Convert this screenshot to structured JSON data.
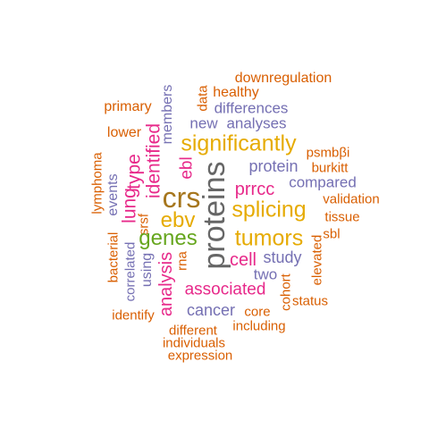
{
  "colors": {
    "orange": "#D95F02",
    "purple": "#7570B3",
    "pink": "#E7298A",
    "gold": "#E6AB02",
    "green": "#66A61E",
    "brown": "#A6761D",
    "gray": "#666666"
  },
  "words": {
    "downregulation": "downregulation",
    "data": "data",
    "healthy": "healthy",
    "members": "members",
    "primary": "primary",
    "differences": "differences",
    "new": "new",
    "analyses": "analyses",
    "lower": "lower",
    "identified": "identified",
    "significantly": "significantly",
    "psmbbi": "psmbβi",
    "lymphoma": "lymphoma",
    "type": "type",
    "ebl": "ebl",
    "proteins": "proteins",
    "protein": "protein",
    "burkitt": "burkitt",
    "events": "events",
    "lung": "lung",
    "crs": "crs",
    "prrcc": "prrcc",
    "compared": "compared",
    "validation": "validation",
    "splicing": "splicing",
    "tissue": "tissue",
    "ebv": "ebv",
    "srsf": "srsf",
    "genes": "genes",
    "tumors": "tumors",
    "sbl": "sbl",
    "bacterial": "bacterial",
    "correlated": "correlated",
    "rna": "rna",
    "cell": "cell",
    "study": "study",
    "elevated": "elevated",
    "using": "using",
    "analysis": "analysis",
    "two": "two",
    "associated": "associated",
    "cohort": "cohort",
    "status": "status",
    "identify": "identify",
    "cancer": "cancer",
    "core": "core",
    "different": "different",
    "including": "including",
    "individuals": "individuals",
    "expression": "expression"
  }
}
